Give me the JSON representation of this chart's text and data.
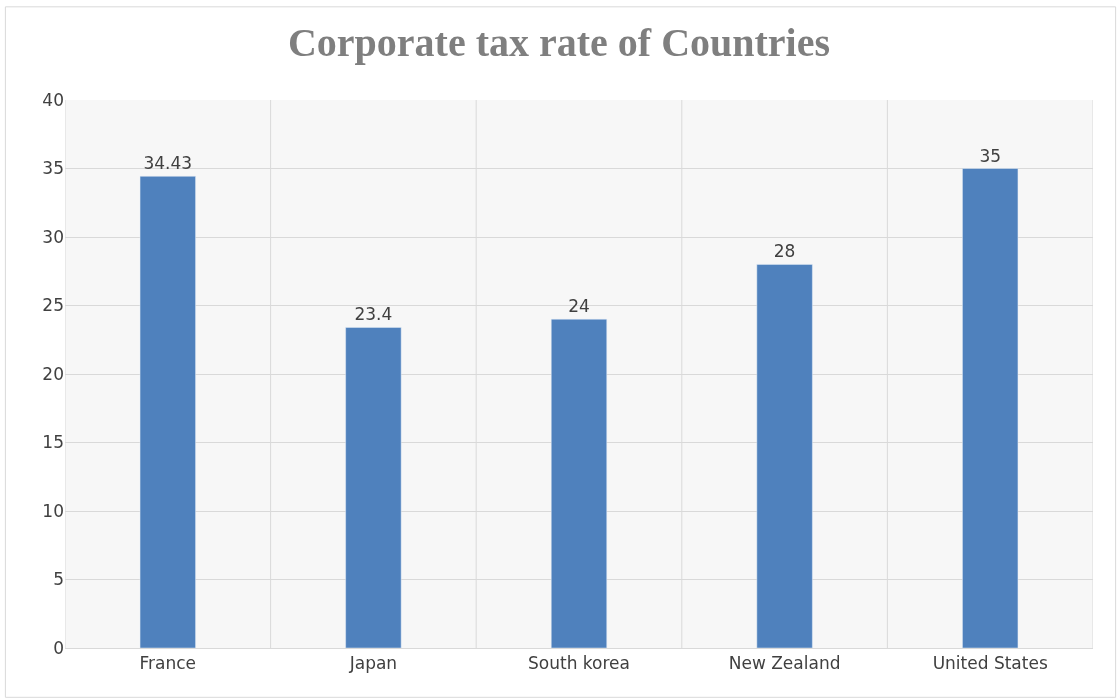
{
  "chart_data": {
    "type": "bar",
    "title": "Corporate tax rate of Countries",
    "categories": [
      "France",
      "Japan",
      "South korea",
      "New Zealand",
      "United States"
    ],
    "values": [
      34.43,
      23.4,
      24,
      28,
      35
    ],
    "color": "#4f81bd",
    "ylim": [
      0,
      40
    ],
    "yticks": [
      0,
      5,
      10,
      15,
      20,
      25,
      30,
      35,
      40
    ],
    "grid": true,
    "data_labels": true
  }
}
